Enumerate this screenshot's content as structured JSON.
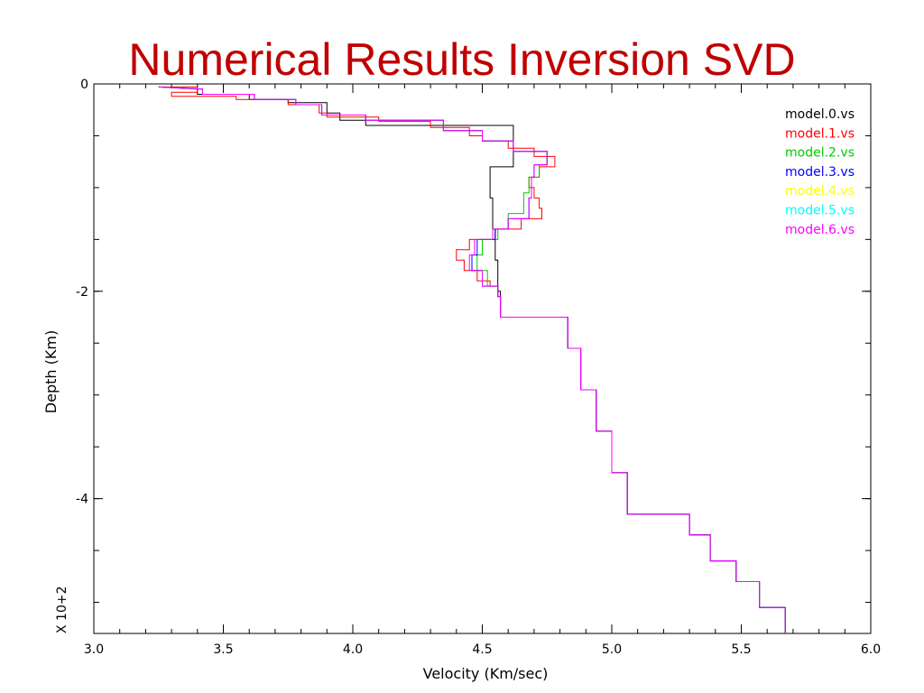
{
  "title": "Numerical Results Inversion SVD",
  "chart_data": {
    "type": "line",
    "xlabel": "Velocity (Km/sec)",
    "ylabel": "Depth (Km)",
    "y_multiplier_label": "X 10+2",
    "xlim": [
      3.0,
      6.0
    ],
    "ylim": [
      -5.3,
      0
    ],
    "x_ticks": [
      "3.0",
      "3.5",
      "4.0",
      "4.5",
      "5.0",
      "5.5",
      "6.0"
    ],
    "x_tick_values": [
      3.0,
      3.5,
      4.0,
      4.5,
      5.0,
      5.5,
      6.0
    ],
    "y_ticks": [
      "0",
      "-2",
      "-4"
    ],
    "y_tick_values": [
      0,
      -2,
      -4
    ],
    "grid": false,
    "legend_position": "top-right",
    "series": [
      {
        "name": "model.0.vs",
        "color": "#000000",
        "points": [
          [
            3.25,
            -0.03
          ],
          [
            3.4,
            -0.05
          ],
          [
            3.4,
            -0.1
          ],
          [
            3.6,
            -0.1
          ],
          [
            3.6,
            -0.15
          ],
          [
            3.75,
            -0.15
          ],
          [
            3.75,
            -0.18
          ],
          [
            3.9,
            -0.18
          ],
          [
            3.9,
            -0.22
          ],
          [
            3.9,
            -0.28
          ],
          [
            3.95,
            -0.28
          ],
          [
            3.95,
            -0.35
          ],
          [
            4.05,
            -0.35
          ],
          [
            4.05,
            -0.4
          ],
          [
            4.62,
            -0.4
          ],
          [
            4.62,
            -0.8
          ],
          [
            4.53,
            -0.8
          ],
          [
            4.53,
            -1.1
          ],
          [
            4.54,
            -1.1
          ],
          [
            4.54,
            -1.4
          ],
          [
            4.55,
            -1.4
          ],
          [
            4.55,
            -1.7
          ],
          [
            4.56,
            -1.7
          ],
          [
            4.56,
            -2.0
          ],
          [
            4.57,
            -2.0
          ],
          [
            4.57,
            -2.25
          ],
          [
            4.83,
            -2.25
          ],
          [
            4.83,
            -2.55
          ],
          [
            4.88,
            -2.55
          ],
          [
            4.88,
            -2.95
          ],
          [
            4.94,
            -2.95
          ],
          [
            4.94,
            -3.35
          ],
          [
            5.0,
            -3.35
          ],
          [
            5.0,
            -3.75
          ],
          [
            5.06,
            -3.75
          ],
          [
            5.06,
            -4.15
          ],
          [
            5.3,
            -4.15
          ],
          [
            5.3,
            -4.35
          ],
          [
            5.38,
            -4.35
          ],
          [
            5.38,
            -4.6
          ],
          [
            5.48,
            -4.6
          ],
          [
            5.48,
            -4.8
          ],
          [
            5.57,
            -4.8
          ],
          [
            5.57,
            -5.05
          ],
          [
            5.67,
            -5.05
          ],
          [
            5.67,
            -5.3
          ]
        ]
      },
      {
        "name": "model.1.vs",
        "color": "#ff0000",
        "points": [
          [
            3.25,
            -0.03
          ],
          [
            3.4,
            -0.03
          ],
          [
            3.4,
            -0.08
          ],
          [
            3.3,
            -0.08
          ],
          [
            3.3,
            -0.12
          ],
          [
            3.55,
            -0.12
          ],
          [
            3.55,
            -0.15
          ],
          [
            3.75,
            -0.15
          ],
          [
            3.75,
            -0.2
          ],
          [
            3.87,
            -0.2
          ],
          [
            3.87,
            -0.28
          ],
          [
            3.9,
            -0.28
          ],
          [
            3.9,
            -0.32
          ],
          [
            4.1,
            -0.32
          ],
          [
            4.1,
            -0.36
          ],
          [
            4.3,
            -0.36
          ],
          [
            4.3,
            -0.42
          ],
          [
            4.45,
            -0.42
          ],
          [
            4.45,
            -0.5
          ],
          [
            4.5,
            -0.5
          ],
          [
            4.5,
            -0.55
          ],
          [
            4.6,
            -0.55
          ],
          [
            4.6,
            -0.62
          ],
          [
            4.7,
            -0.62
          ],
          [
            4.7,
            -0.7
          ],
          [
            4.78,
            -0.7
          ],
          [
            4.78,
            -0.8
          ],
          [
            4.72,
            -0.8
          ],
          [
            4.72,
            -0.9
          ],
          [
            4.68,
            -0.9
          ],
          [
            4.68,
            -1.0
          ],
          [
            4.7,
            -1.0
          ],
          [
            4.7,
            -1.1
          ],
          [
            4.72,
            -1.1
          ],
          [
            4.72,
            -1.2
          ],
          [
            4.73,
            -1.2
          ],
          [
            4.73,
            -1.3
          ],
          [
            4.65,
            -1.3
          ],
          [
            4.65,
            -1.4
          ],
          [
            4.55,
            -1.4
          ],
          [
            4.55,
            -1.5
          ],
          [
            4.45,
            -1.5
          ],
          [
            4.45,
            -1.6
          ],
          [
            4.4,
            -1.6
          ],
          [
            4.4,
            -1.7
          ],
          [
            4.43,
            -1.7
          ],
          [
            4.43,
            -1.8
          ],
          [
            4.48,
            -1.8
          ],
          [
            4.48,
            -1.9
          ],
          [
            4.53,
            -1.9
          ],
          [
            4.53,
            -1.95
          ],
          [
            4.56,
            -1.95
          ],
          [
            4.56,
            -2.05
          ],
          [
            4.57,
            -2.05
          ],
          [
            4.57,
            -2.25
          ],
          [
            4.83,
            -2.25
          ],
          [
            4.83,
            -2.55
          ],
          [
            4.88,
            -2.55
          ],
          [
            4.88,
            -2.95
          ],
          [
            4.94,
            -2.95
          ],
          [
            4.94,
            -3.35
          ],
          [
            5.0,
            -3.35
          ],
          [
            5.0,
            -3.75
          ],
          [
            5.06,
            -3.75
          ],
          [
            5.06,
            -4.15
          ],
          [
            5.3,
            -4.15
          ],
          [
            5.3,
            -4.35
          ],
          [
            5.38,
            -4.35
          ],
          [
            5.38,
            -4.6
          ],
          [
            5.48,
            -4.6
          ],
          [
            5.48,
            -4.8
          ],
          [
            5.57,
            -4.8
          ],
          [
            5.57,
            -5.05
          ],
          [
            5.67,
            -5.05
          ],
          [
            5.67,
            -5.3
          ]
        ]
      },
      {
        "name": "model.2.vs",
        "color": "#00cc00",
        "points": [
          [
            3.25,
            -0.03
          ],
          [
            3.42,
            -0.05
          ],
          [
            3.42,
            -0.1
          ],
          [
            3.62,
            -0.1
          ],
          [
            3.62,
            -0.15
          ],
          [
            3.78,
            -0.15
          ],
          [
            3.78,
            -0.2
          ],
          [
            3.88,
            -0.2
          ],
          [
            3.88,
            -0.3
          ],
          [
            4.05,
            -0.3
          ],
          [
            4.05,
            -0.35
          ],
          [
            4.35,
            -0.35
          ],
          [
            4.35,
            -0.45
          ],
          [
            4.5,
            -0.45
          ],
          [
            4.5,
            -0.55
          ],
          [
            4.62,
            -0.55
          ],
          [
            4.62,
            -0.65
          ],
          [
            4.75,
            -0.65
          ],
          [
            4.75,
            -0.78
          ],
          [
            4.72,
            -0.78
          ],
          [
            4.72,
            -0.9
          ],
          [
            4.68,
            -0.9
          ],
          [
            4.68,
            -1.05
          ],
          [
            4.66,
            -1.05
          ],
          [
            4.66,
            -1.25
          ],
          [
            4.6,
            -1.25
          ],
          [
            4.6,
            -1.4
          ],
          [
            4.56,
            -1.4
          ],
          [
            4.56,
            -1.5
          ],
          [
            4.5,
            -1.5
          ],
          [
            4.5,
            -1.65
          ],
          [
            4.48,
            -1.65
          ],
          [
            4.48,
            -1.8
          ],
          [
            4.52,
            -1.8
          ],
          [
            4.52,
            -1.95
          ],
          [
            4.56,
            -1.95
          ],
          [
            4.56,
            -2.05
          ],
          [
            4.57,
            -2.05
          ],
          [
            4.57,
            -2.25
          ],
          [
            4.83,
            -2.25
          ],
          [
            4.83,
            -2.55
          ],
          [
            4.88,
            -2.55
          ],
          [
            4.88,
            -2.95
          ],
          [
            4.94,
            -2.95
          ],
          [
            4.94,
            -3.35
          ],
          [
            5.0,
            -3.35
          ],
          [
            5.0,
            -3.75
          ],
          [
            5.06,
            -3.75
          ],
          [
            5.06,
            -4.15
          ],
          [
            5.3,
            -4.15
          ],
          [
            5.3,
            -4.35
          ],
          [
            5.38,
            -4.35
          ],
          [
            5.38,
            -4.6
          ],
          [
            5.48,
            -4.6
          ],
          [
            5.48,
            -4.8
          ],
          [
            5.57,
            -4.8
          ],
          [
            5.57,
            -5.05
          ],
          [
            5.67,
            -5.05
          ],
          [
            5.67,
            -5.3
          ]
        ]
      },
      {
        "name": "model.3.vs",
        "color": "#0000ff",
        "points": [
          [
            3.25,
            -0.03
          ],
          [
            3.42,
            -0.05
          ],
          [
            3.42,
            -0.1
          ],
          [
            3.62,
            -0.1
          ],
          [
            3.62,
            -0.15
          ],
          [
            3.78,
            -0.15
          ],
          [
            3.78,
            -0.2
          ],
          [
            3.88,
            -0.2
          ],
          [
            3.88,
            -0.3
          ],
          [
            4.05,
            -0.3
          ],
          [
            4.05,
            -0.35
          ],
          [
            4.35,
            -0.35
          ],
          [
            4.35,
            -0.45
          ],
          [
            4.5,
            -0.45
          ],
          [
            4.5,
            -0.55
          ],
          [
            4.62,
            -0.55
          ],
          [
            4.62,
            -0.65
          ],
          [
            4.75,
            -0.65
          ],
          [
            4.75,
            -0.78
          ],
          [
            4.7,
            -0.78
          ],
          [
            4.7,
            -0.9
          ],
          [
            4.69,
            -0.9
          ],
          [
            4.69,
            -1.1
          ],
          [
            4.68,
            -1.1
          ],
          [
            4.68,
            -1.3
          ],
          [
            4.6,
            -1.3
          ],
          [
            4.6,
            -1.4
          ],
          [
            4.55,
            -1.4
          ],
          [
            4.55,
            -1.5
          ],
          [
            4.48,
            -1.5
          ],
          [
            4.48,
            -1.65
          ],
          [
            4.46,
            -1.65
          ],
          [
            4.46,
            -1.8
          ],
          [
            4.5,
            -1.8
          ],
          [
            4.5,
            -1.95
          ],
          [
            4.56,
            -1.95
          ],
          [
            4.56,
            -2.05
          ],
          [
            4.57,
            -2.05
          ],
          [
            4.57,
            -2.25
          ],
          [
            4.83,
            -2.25
          ],
          [
            4.83,
            -2.55
          ],
          [
            4.88,
            -2.55
          ],
          [
            4.88,
            -2.95
          ],
          [
            4.94,
            -2.95
          ],
          [
            4.94,
            -3.35
          ],
          [
            5.0,
            -3.35
          ],
          [
            5.0,
            -3.75
          ],
          [
            5.06,
            -3.75
          ],
          [
            5.06,
            -4.15
          ],
          [
            5.3,
            -4.15
          ],
          [
            5.3,
            -4.35
          ],
          [
            5.38,
            -4.35
          ],
          [
            5.38,
            -4.6
          ],
          [
            5.48,
            -4.6
          ],
          [
            5.48,
            -4.8
          ],
          [
            5.57,
            -4.8
          ],
          [
            5.57,
            -5.05
          ],
          [
            5.67,
            -5.05
          ],
          [
            5.67,
            -5.3
          ]
        ]
      },
      {
        "name": "model.4.vs",
        "color": "#ffff00",
        "points": []
      },
      {
        "name": "model.5.vs",
        "color": "#00ffff",
        "points": []
      },
      {
        "name": "model.6.vs",
        "color": "#ff00ff",
        "points": [
          [
            3.25,
            -0.03
          ],
          [
            3.42,
            -0.05
          ],
          [
            3.42,
            -0.1
          ],
          [
            3.62,
            -0.1
          ],
          [
            3.62,
            -0.15
          ],
          [
            3.78,
            -0.15
          ],
          [
            3.78,
            -0.2
          ],
          [
            3.88,
            -0.2
          ],
          [
            3.88,
            -0.3
          ],
          [
            4.05,
            -0.3
          ],
          [
            4.05,
            -0.35
          ],
          [
            4.35,
            -0.35
          ],
          [
            4.35,
            -0.45
          ],
          [
            4.5,
            -0.45
          ],
          [
            4.5,
            -0.55
          ],
          [
            4.62,
            -0.55
          ],
          [
            4.62,
            -0.65
          ],
          [
            4.75,
            -0.65
          ],
          [
            4.75,
            -0.78
          ],
          [
            4.7,
            -0.78
          ],
          [
            4.7,
            -0.9
          ],
          [
            4.69,
            -0.9
          ],
          [
            4.69,
            -1.1
          ],
          [
            4.68,
            -1.1
          ],
          [
            4.68,
            -1.3
          ],
          [
            4.6,
            -1.3
          ],
          [
            4.6,
            -1.4
          ],
          [
            4.54,
            -1.4
          ],
          [
            4.54,
            -1.5
          ],
          [
            4.47,
            -1.5
          ],
          [
            4.47,
            -1.65
          ],
          [
            4.45,
            -1.65
          ],
          [
            4.45,
            -1.8
          ],
          [
            4.5,
            -1.8
          ],
          [
            4.5,
            -1.95
          ],
          [
            4.56,
            -1.95
          ],
          [
            4.56,
            -2.05
          ],
          [
            4.57,
            -2.05
          ],
          [
            4.57,
            -2.25
          ],
          [
            4.83,
            -2.25
          ],
          [
            4.83,
            -2.55
          ],
          [
            4.88,
            -2.55
          ],
          [
            4.88,
            -2.95
          ],
          [
            4.94,
            -2.95
          ],
          [
            4.94,
            -3.35
          ],
          [
            5.0,
            -3.35
          ],
          [
            5.0,
            -3.75
          ],
          [
            5.06,
            -3.75
          ],
          [
            5.06,
            -4.15
          ],
          [
            5.3,
            -4.15
          ],
          [
            5.3,
            -4.35
          ],
          [
            5.38,
            -4.35
          ],
          [
            5.38,
            -4.6
          ],
          [
            5.48,
            -4.6
          ],
          [
            5.48,
            -4.8
          ],
          [
            5.57,
            -4.8
          ],
          [
            5.57,
            -5.05
          ],
          [
            5.67,
            -5.05
          ],
          [
            5.67,
            -5.3
          ]
        ]
      }
    ]
  }
}
